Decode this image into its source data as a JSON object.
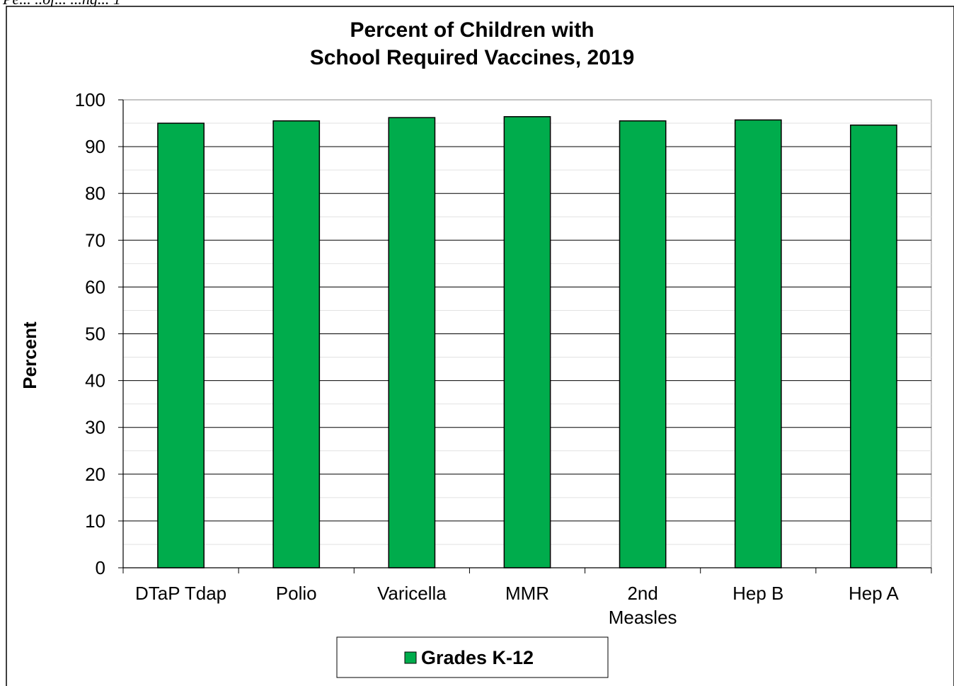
{
  "header_fragment": "Pe... ..of... ...ng... 1",
  "chart_data": {
    "type": "bar",
    "title": [
      "Percent of Children with",
      "School Required Vaccines, 2019"
    ],
    "ylabel": "Percent",
    "xlabel": "",
    "ylim": [
      0,
      100
    ],
    "yticks": [
      "0",
      "10",
      "20",
      "30",
      "40",
      "50",
      "60",
      "70",
      "80",
      "90",
      "100"
    ],
    "categories": [
      [
        "DTaP Tdap"
      ],
      [
        "Polio"
      ],
      [
        "Varicella"
      ],
      [
        "MMR"
      ],
      [
        "2nd",
        "Measles"
      ],
      [
        "Hep B"
      ],
      [
        "Hep A"
      ]
    ],
    "series": [
      {
        "name": "Grades K-12",
        "color": "#00ac4c",
        "values": [
          95.0,
          95.5,
          96.2,
          96.4,
          95.5,
          95.7,
          94.6
        ]
      }
    ],
    "grid": true,
    "legend_position": "bottom"
  }
}
